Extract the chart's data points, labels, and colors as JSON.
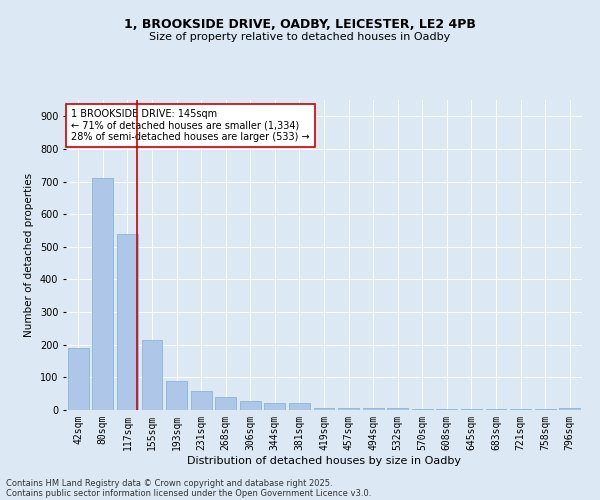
{
  "title1": "1, BROOKSIDE DRIVE, OADBY, LEICESTER, LE2 4PB",
  "title2": "Size of property relative to detached houses in Oadby",
  "xlabel": "Distribution of detached houses by size in Oadby",
  "ylabel": "Number of detached properties",
  "categories": [
    "42sqm",
    "80sqm",
    "117sqm",
    "155sqm",
    "193sqm",
    "231sqm",
    "268sqm",
    "306sqm",
    "344sqm",
    "381sqm",
    "419sqm",
    "457sqm",
    "494sqm",
    "532sqm",
    "570sqm",
    "608sqm",
    "645sqm",
    "683sqm",
    "721sqm",
    "758sqm",
    "796sqm"
  ],
  "values": [
    190,
    710,
    540,
    215,
    90,
    57,
    40,
    28,
    22,
    22,
    7,
    7,
    5,
    5,
    2,
    2,
    2,
    2,
    2,
    2,
    5
  ],
  "bar_color": "#aec6e8",
  "bar_edge_color": "#7aafd4",
  "highlight_line_color": "#cc0000",
  "annotation_text": "1 BROOKSIDE DRIVE: 145sqm\n← 71% of detached houses are smaller (1,334)\n28% of semi-detached houses are larger (533) →",
  "annotation_box_color": "#cc0000",
  "background_color": "#dce9f5",
  "ylim": [
    0,
    950
  ],
  "yticks": [
    0,
    100,
    200,
    300,
    400,
    500,
    600,
    700,
    800,
    900
  ],
  "footer1": "Contains HM Land Registry data © Crown copyright and database right 2025.",
  "footer2": "Contains public sector information licensed under the Open Government Licence v3.0.",
  "title1_fontsize": 9,
  "title2_fontsize": 8,
  "xlabel_fontsize": 8,
  "ylabel_fontsize": 7.5,
  "tick_fontsize": 7,
  "annotation_fontsize": 7,
  "footer_fontsize": 6
}
